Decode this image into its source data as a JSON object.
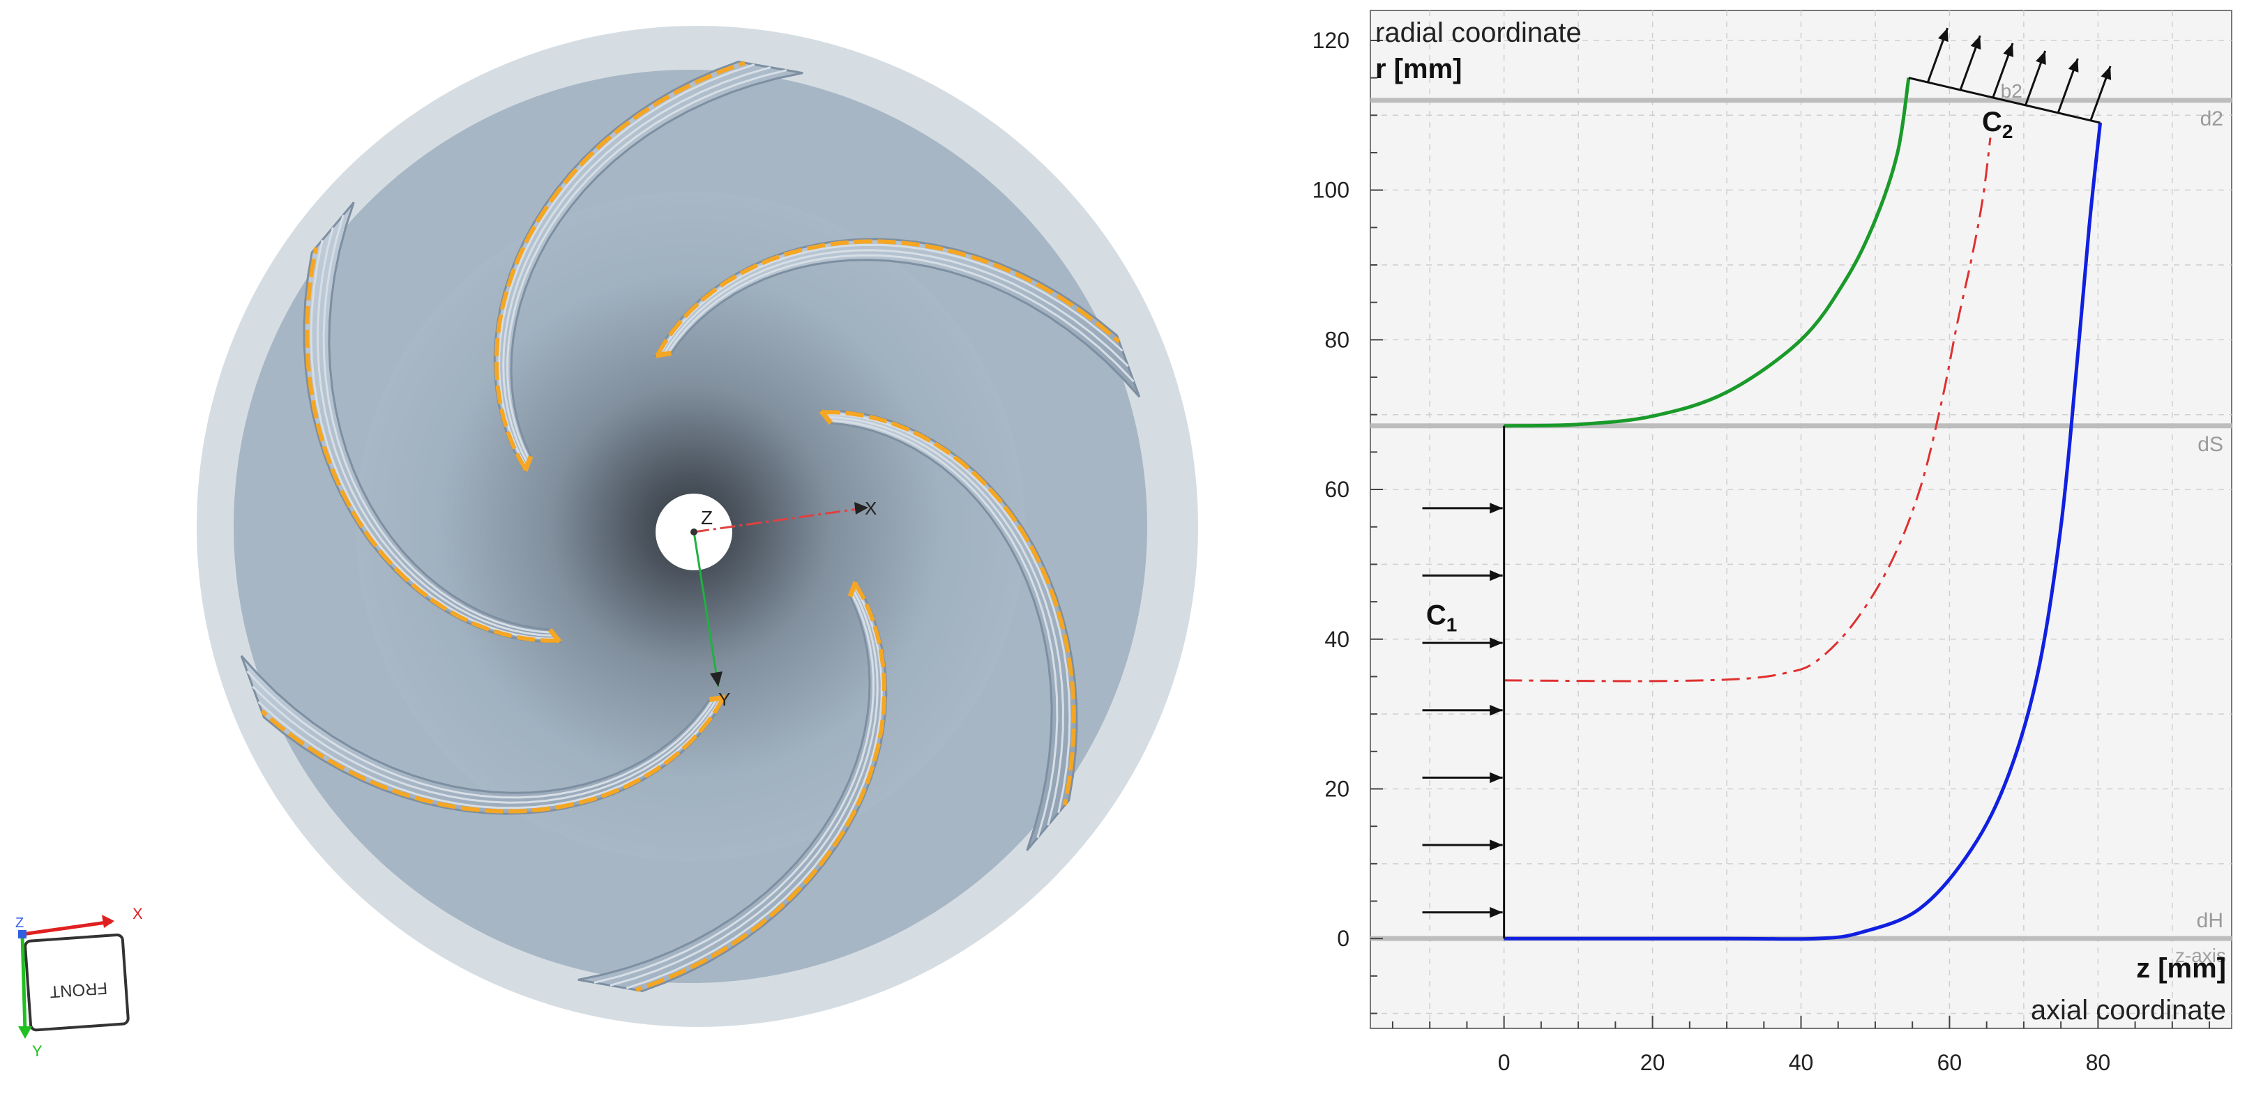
{
  "viewport": {
    "axes": {
      "z_label": "Z",
      "x_label": "X",
      "y_label": "Y"
    },
    "view_cube": {
      "face_label": "FRONT",
      "axis_z": "Z",
      "axis_x": "X",
      "axis_y": "Y",
      "colors": {
        "x": "#e02020",
        "y": "#20c020",
        "z": "#3060e0"
      }
    },
    "colors": {
      "outer_shroud": "#d5dde3",
      "hub_disk": "#a7b6c4",
      "blade": "#aebccb",
      "blade_edge": "#f5a623",
      "hub_hole": "#ffffff"
    },
    "blade_count": 6
  },
  "chart_data": {
    "type": "line",
    "title": "",
    "y_axis": {
      "title": "radial coordinate",
      "label": "r [mm]",
      "range": [
        -12,
        124
      ],
      "ticks": [
        0,
        20,
        40,
        60,
        80,
        100,
        120
      ]
    },
    "x_axis": {
      "title": "axial coordinate",
      "label": "z [mm]",
      "range": [
        -18,
        98
      ],
      "ticks": [
        0,
        20,
        40,
        60,
        80
      ],
      "faint_label": "z-axis"
    },
    "reference_lines": [
      {
        "name": "d2",
        "r": 112
      },
      {
        "name": "dS",
        "r": 68.5
      },
      {
        "name": "dH",
        "r": 0
      }
    ],
    "series": [
      {
        "name": "",
        "color": "#1a9a2a",
        "style": "solid",
        "points": [
          [
            0,
            68.5
          ],
          [
            10,
            68.7
          ],
          [
            20,
            69.8
          ],
          [
            30,
            73
          ],
          [
            40,
            80
          ],
          [
            46,
            88
          ],
          [
            50,
            96
          ],
          [
            53,
            105
          ],
          [
            54.5,
            115
          ]
        ]
      },
      {
        "name": "",
        "color": "#1020e0",
        "style": "solid",
        "points": [
          [
            0,
            0
          ],
          [
            30,
            0
          ],
          [
            42,
            0
          ],
          [
            48,
            0.8
          ],
          [
            56,
            4
          ],
          [
            63,
            12
          ],
          [
            68,
            22
          ],
          [
            72,
            36
          ],
          [
            75,
            55
          ],
          [
            77,
            75
          ],
          [
            78.8,
            95
          ],
          [
            80.3,
            109
          ]
        ]
      },
      {
        "name": "",
        "color": "#e03030",
        "style": "dashdot",
        "points": [
          [
            0,
            34.5
          ],
          [
            20,
            34.4
          ],
          [
            32,
            34.7
          ],
          [
            38,
            35.5
          ],
          [
            42,
            37
          ],
          [
            47,
            42
          ],
          [
            52,
            50
          ],
          [
            56,
            60
          ],
          [
            59,
            72
          ],
          [
            61,
            82
          ],
          [
            63,
            91
          ],
          [
            64.5,
            99
          ],
          [
            65.5,
            107
          ]
        ]
      }
    ],
    "boundaries": [
      {
        "name": "C1",
        "label": "C",
        "subscript": "1",
        "from": [
          0,
          0
        ],
        "to": [
          0,
          68.5
        ],
        "arrows_at_r": [
          3.5,
          12.5,
          21.5,
          30.5,
          39.5,
          48.5,
          57.5
        ]
      },
      {
        "name": "C2",
        "label": "C",
        "subscript": "2",
        "from": [
          54.5,
          115
        ],
        "to": [
          80.3,
          109
        ],
        "faint_label": "b2",
        "arrow_count": 6
      }
    ],
    "grid": true,
    "grid_style": "dashed",
    "background": "#f4f4f4"
  }
}
